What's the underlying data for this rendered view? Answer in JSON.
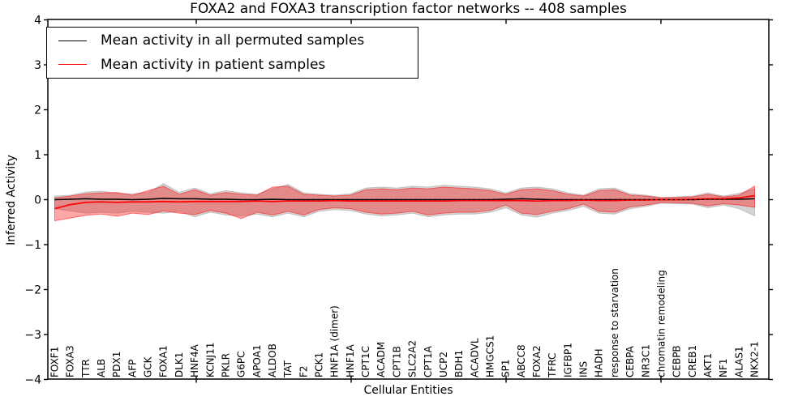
{
  "figure": {
    "title": "FOXA2 and FOXA3 transcription factor networks -- 408 samples",
    "xlabel": "Cellular Entities",
    "ylabel": "Inferred Activity"
  },
  "legend": {
    "entries": [
      {
        "label": "Mean activity in all permuted samples",
        "color": "#000000"
      },
      {
        "label": "Mean activity in patient samples",
        "color": "#ff0000"
      }
    ]
  },
  "chart_data": {
    "type": "line",
    "title": "FOXA2 and FOXA3 transcription factor networks -- 408 samples",
    "xlabel": "Cellular Entities",
    "ylabel": "Inferred Activity",
    "ylim": [
      -4,
      4
    ],
    "yticks": [
      4,
      3,
      2,
      1,
      0,
      -1,
      -2,
      -3,
      -4
    ],
    "ytick_labels": [
      "4",
      "3",
      "2",
      "1",
      "0",
      "−1",
      "−2",
      "−3",
      "−4"
    ],
    "grid": false,
    "legend_position": "upper left",
    "categories": [
      "FOXF1",
      "FOXA3",
      "TTR",
      "ALB",
      "PDX1",
      "AFP",
      "GCK",
      "FOXA1",
      "DLK1",
      "HNF4A",
      "KCNJ11",
      "PKLR",
      "G6PC",
      "APOA1",
      "ALDOB",
      "TAT",
      "F2",
      "PCK1",
      "HNF1A (dimer)",
      "HNF1A",
      "CPT1C",
      "ACADM",
      "CPT1B",
      "SLC2A2",
      "CPT1A",
      "UCP2",
      "BDH1",
      "ACADVL",
      "HMGCS1",
      "SP1",
      "ABCC8",
      "FOXA2",
      "TFRC",
      "IGFBP1",
      "INS",
      "HADH",
      "response to starvation",
      "CEBPA",
      "NR3C1",
      "chromatin remodeling",
      "CEBPB",
      "CREB1",
      "AKT1",
      "NF1",
      "ALAS1",
      "NKX2-1"
    ],
    "series": [
      {
        "name": "Mean activity in all permuted samples",
        "color": "#000000",
        "values": [
          0.0,
          0.01,
          0.02,
          0.01,
          0.01,
          0.0,
          0.01,
          0.03,
          0.02,
          0.02,
          0.01,
          0.01,
          0.0,
          0.0,
          0.01,
          0.0,
          0.0,
          0.0,
          0.0,
          0.0,
          0.0,
          0.0,
          0.0,
          0.0,
          0.0,
          0.0,
          0.0,
          0.0,
          0.0,
          0.01,
          0.02,
          0.01,
          0.0,
          0.0,
          0.0,
          0.0,
          0.0,
          0.0,
          0.0,
          0.0,
          0.0,
          0.0,
          0.01,
          0.01,
          0.01,
          0.02
        ]
      },
      {
        "name": "Mean activity in patient samples",
        "color": "#ff0000",
        "values": [
          -0.2,
          -0.11,
          -0.06,
          -0.05,
          -0.06,
          -0.05,
          -0.05,
          -0.04,
          -0.05,
          -0.04,
          -0.04,
          -0.04,
          -0.04,
          -0.03,
          -0.04,
          -0.03,
          -0.03,
          -0.03,
          -0.02,
          -0.03,
          -0.03,
          -0.03,
          -0.03,
          -0.03,
          -0.03,
          -0.03,
          -0.02,
          -0.02,
          -0.02,
          -0.02,
          -0.02,
          -0.03,
          -0.02,
          -0.02,
          -0.01,
          -0.02,
          -0.02,
          -0.01,
          -0.01,
          0.0,
          0.0,
          0.01,
          0.02,
          0.02,
          0.04,
          0.09
        ]
      }
    ],
    "bands": [
      {
        "name": "permuted samples std band",
        "color": "#aaaaaa",
        "opacity": 0.5,
        "upper": [
          0.08,
          0.1,
          0.17,
          0.19,
          0.14,
          0.13,
          0.16,
          0.36,
          0.16,
          0.26,
          0.13,
          0.2,
          0.15,
          0.12,
          0.24,
          0.34,
          0.15,
          0.12,
          0.1,
          0.13,
          0.26,
          0.28,
          0.26,
          0.3,
          0.28,
          0.32,
          0.3,
          0.28,
          0.24,
          0.15,
          0.26,
          0.28,
          0.24,
          0.15,
          0.1,
          0.24,
          0.26,
          0.13,
          0.1,
          0.05,
          0.06,
          0.08,
          0.15,
          0.08,
          0.14,
          0.24
        ],
        "lower": [
          -0.2,
          -0.25,
          -0.3,
          -0.28,
          -0.3,
          -0.26,
          -0.28,
          -0.3,
          -0.26,
          -0.38,
          -0.28,
          -0.34,
          -0.36,
          -0.32,
          -0.38,
          -0.3,
          -0.38,
          -0.26,
          -0.22,
          -0.24,
          -0.32,
          -0.36,
          -0.34,
          -0.3,
          -0.38,
          -0.34,
          -0.32,
          -0.32,
          -0.28,
          -0.18,
          -0.34,
          -0.39,
          -0.3,
          -0.24,
          -0.15,
          -0.3,
          -0.32,
          -0.2,
          -0.15,
          -0.08,
          -0.09,
          -0.1,
          -0.18,
          -0.12,
          -0.2,
          -0.36
        ]
      },
      {
        "name": "patient samples std band",
        "color": "#ff0000",
        "opacity": 0.35,
        "upper": [
          0.04,
          0.08,
          0.13,
          0.15,
          0.16,
          0.1,
          0.2,
          0.3,
          0.12,
          0.22,
          0.1,
          0.16,
          0.12,
          0.1,
          0.28,
          0.3,
          0.12,
          0.1,
          0.08,
          0.1,
          0.22,
          0.24,
          0.22,
          0.26,
          0.24,
          0.28,
          0.26,
          0.24,
          0.2,
          0.12,
          0.22,
          0.24,
          0.2,
          0.12,
          0.08,
          0.2,
          0.22,
          0.1,
          0.08,
          0.04,
          0.05,
          0.06,
          0.12,
          0.06,
          0.1,
          0.3
        ],
        "lower": [
          -0.47,
          -0.41,
          -0.35,
          -0.32,
          -0.37,
          -0.3,
          -0.33,
          -0.25,
          -0.3,
          -0.33,
          -0.24,
          -0.3,
          -0.42,
          -0.28,
          -0.34,
          -0.26,
          -0.34,
          -0.22,
          -0.18,
          -0.2,
          -0.28,
          -0.32,
          -0.3,
          -0.26,
          -0.34,
          -0.3,
          -0.28,
          -0.28,
          -0.24,
          -0.12,
          -0.3,
          -0.33,
          -0.26,
          -0.2,
          -0.1,
          -0.26,
          -0.28,
          -0.16,
          -0.12,
          -0.06,
          -0.07,
          -0.08,
          -0.14,
          -0.09,
          -0.12,
          -0.17
        ]
      }
    ]
  }
}
